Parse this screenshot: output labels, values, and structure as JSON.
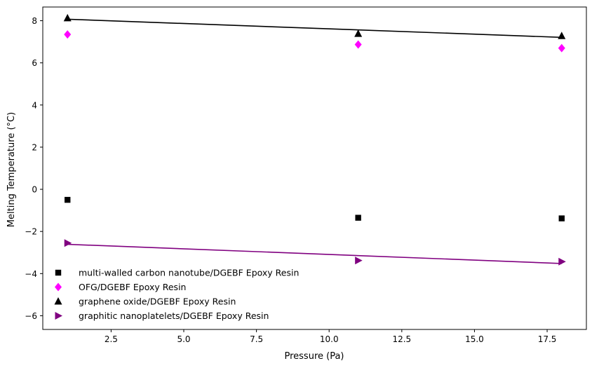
{
  "chart_data": {
    "type": "scatter",
    "title": "",
    "xlabel": "Pressure (Pa)",
    "ylabel": "Melting Temperature (°C)",
    "xlim": [
      0.15,
      18.85
    ],
    "ylim": [
      -6.65,
      8.65
    ],
    "xticks": [
      2.5,
      5.0,
      7.5,
      10.0,
      12.5,
      15.0,
      17.5
    ],
    "xtick_labels": [
      "2.5",
      "5.0",
      "7.5",
      "10.0",
      "12.5",
      "15.0",
      "17.5"
    ],
    "yticks": [
      -6,
      -4,
      -2,
      0,
      2,
      4,
      6,
      8
    ],
    "ytick_labels": [
      "−6",
      "−4",
      "−2",
      "0",
      "2",
      "4",
      "6",
      "8"
    ],
    "grid": false,
    "legend_position": "lower-left",
    "series": [
      {
        "name": "multi-walled carbon nanotube/DGEBF Epoxy Resin",
        "marker": "square",
        "color": "#000000",
        "x": [
          1,
          11,
          18
        ],
        "y": [
          -0.5,
          -1.35,
          -1.38
        ],
        "fit": null
      },
      {
        "name": "OFG/DGEBF Epoxy Resin",
        "marker": "diamond",
        "color": "#ff00ff",
        "x": [
          1,
          11,
          18
        ],
        "y": [
          7.35,
          6.87,
          6.7
        ],
        "fit": null
      },
      {
        "name": "graphene oxide/DGEBF Epoxy Resin",
        "marker": "triangle-up",
        "color": "#000000",
        "x": [
          1,
          11,
          18
        ],
        "y": [
          8.12,
          7.38,
          7.28
        ],
        "fit": {
          "x": [
            1,
            18
          ],
          "y": [
            8.07,
            7.21
          ],
          "color": "#000000"
        }
      },
      {
        "name": "graphitic nanoplatelets/DGEBF Epoxy Resin",
        "marker": "triangle-right",
        "color": "#800080",
        "x": [
          1,
          11,
          18
        ],
        "y": [
          -2.55,
          -3.38,
          -3.43
        ],
        "fit": {
          "x": [
            1,
            18
          ],
          "y": [
            -2.61,
            -3.52
          ],
          "color": "#800080"
        }
      }
    ]
  }
}
